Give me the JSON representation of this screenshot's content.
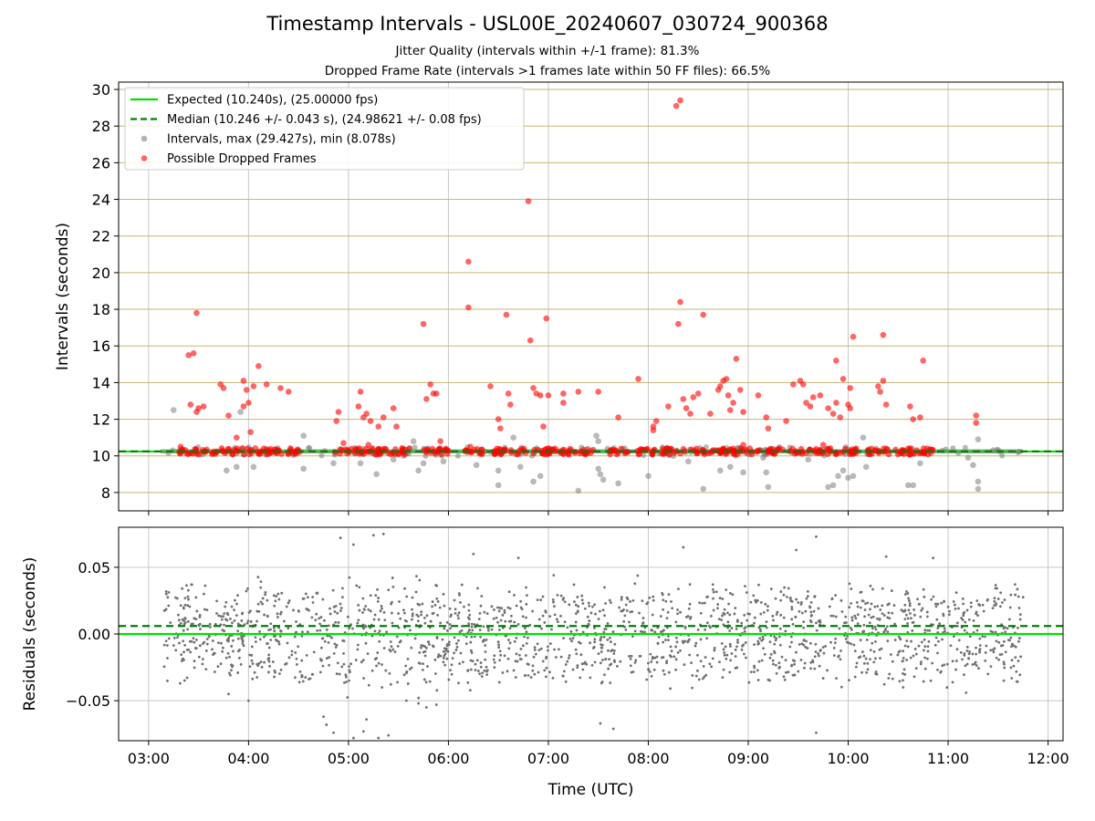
{
  "title": "Timestamp Intervals - USL00E_20240607_030724_900368",
  "subtitle_1": "Jitter Quality (intervals within +/-1 frame): 81.3%",
  "subtitle_2": "Dropped Frame Rate (intervals >1 frames late within 50 FF files): 66.5%",
  "colors": {
    "expected": "#00e000",
    "median": "#008000",
    "intervals": "#808080",
    "dropped": "#ff0000",
    "hgrid": "#c8b670",
    "vgrid": "#c8c8c8"
  },
  "chart_data": [
    {
      "type": "scatter",
      "panel": "top",
      "xlabel": "",
      "ylabel": "Intervals (seconds)",
      "x_unit": "hour (UTC)",
      "xlim": [
        2.7,
        12.15
      ],
      "ylim": [
        7.0,
        30.4
      ],
      "x_ticks": [
        3,
        4,
        5,
        6,
        7,
        8,
        9,
        10,
        11,
        12
      ],
      "y_ticks": [
        8,
        10,
        12,
        14,
        16,
        18,
        20,
        22,
        24,
        26,
        28,
        30
      ],
      "y_tick_labels": [
        "8",
        "10",
        "12",
        "14",
        "16",
        "18",
        "20",
        "22",
        "24",
        "26",
        "28",
        "30"
      ],
      "grid": "y (tan) and x (gray)",
      "legend_placement": "top-left",
      "legend": [
        {
          "label": "Expected (10.240s), (25.00000 fps)",
          "style": "solid-line",
          "color": "#00e000"
        },
        {
          "label": "Median (10.246 +/- 0.043 s), (24.98621 +/- 0.08 fps)",
          "style": "dashed-line",
          "color": "#008000"
        },
        {
          "label": "Intervals, max (29.427s), min (8.078s)",
          "style": "marker",
          "color": "#808080"
        },
        {
          "label": "Possible Dropped Frames",
          "style": "marker",
          "color": "#ff0000"
        }
      ],
      "expected_y": 10.24,
      "median_y": 10.246,
      "baseline_band": {
        "x_start": 3.12,
        "x_end": 11.75,
        "y_low": 10.13,
        "y_high": 10.36
      },
      "series": [
        {
          "name": "Intervals, max (29.427s), min (8.078s)",
          "color": "#808080",
          "points": [
            [
              3.25,
              12.5
            ],
            [
              3.78,
              9.2
            ],
            [
              3.88,
              9.4
            ],
            [
              3.92,
              12.4
            ],
            [
              4.05,
              9.4
            ],
            [
              4.55,
              11.1
            ],
            [
              4.55,
              9.3
            ],
            [
              4.85,
              9.6
            ],
            [
              5.12,
              9.6
            ],
            [
              5.28,
              9.0
            ],
            [
              5.35,
              10.2
            ],
            [
              5.45,
              9.8
            ],
            [
              5.55,
              10.0
            ],
            [
              5.65,
              10.8
            ],
            [
              5.7,
              9.2
            ],
            [
              5.75,
              9.6
            ],
            [
              5.95,
              9.7
            ],
            [
              6.28,
              9.5
            ],
            [
              6.5,
              9.2
            ],
            [
              6.5,
              8.4
            ],
            [
              6.65,
              11.0
            ],
            [
              6.72,
              9.4
            ],
            [
              6.85,
              8.6
            ],
            [
              6.92,
              8.9
            ],
            [
              7.3,
              8.1
            ],
            [
              7.48,
              11.1
            ],
            [
              7.5,
              10.8
            ],
            [
              7.5,
              9.3
            ],
            [
              7.52,
              9.0
            ],
            [
              7.55,
              8.7
            ],
            [
              7.7,
              8.5
            ],
            [
              8.0,
              8.9
            ],
            [
              8.25,
              10.0
            ],
            [
              8.4,
              9.7
            ],
            [
              8.55,
              8.2
            ],
            [
              8.72,
              9.2
            ],
            [
              8.82,
              9.4
            ],
            [
              8.95,
              9.1
            ],
            [
              9.15,
              9.9
            ],
            [
              9.18,
              9.1
            ],
            [
              9.2,
              8.3
            ],
            [
              9.6,
              9.8
            ],
            [
              9.8,
              8.3
            ],
            [
              9.85,
              8.4
            ],
            [
              9.9,
              8.9
            ],
            [
              9.95,
              9.2
            ],
            [
              10.0,
              8.8
            ],
            [
              10.05,
              8.9
            ],
            [
              10.15,
              11.0
            ],
            [
              10.18,
              9.4
            ],
            [
              10.6,
              8.4
            ],
            [
              10.65,
              8.4
            ],
            [
              10.72,
              9.6
            ],
            [
              11.2,
              9.9
            ],
            [
              11.25,
              9.5
            ],
            [
              11.3,
              8.2
            ],
            [
              11.3,
              8.6
            ],
            [
              11.3,
              10.9
            ],
            [
              11.45,
              10.3
            ],
            [
              11.7,
              10.2
            ]
          ]
        },
        {
          "name": "Possible Dropped Frames",
          "color": "#ff0000",
          "points": [
            [
              3.4,
              15.5
            ],
            [
              3.45,
              15.6
            ],
            [
              3.48,
              17.8
            ],
            [
              3.42,
              12.8
            ],
            [
              3.5,
              12.6
            ],
            [
              3.48,
              12.4
            ],
            [
              3.55,
              12.7
            ],
            [
              3.72,
              13.9
            ],
            [
              3.75,
              13.7
            ],
            [
              3.8,
              12.2
            ],
            [
              3.88,
              11.0
            ],
            [
              3.95,
              14.1
            ],
            [
              3.98,
              13.6
            ],
            [
              3.95,
              12.7
            ],
            [
              4.0,
              12.9
            ],
            [
              4.05,
              13.8
            ],
            [
              4.1,
              14.9
            ],
            [
              4.18,
              13.9
            ],
            [
              4.32,
              13.7
            ],
            [
              4.4,
              13.5
            ],
            [
              4.02,
              11.3
            ],
            [
              3.32,
              10.5
            ],
            [
              4.88,
              11.9
            ],
            [
              4.9,
              12.4
            ],
            [
              4.95,
              10.7
            ],
            [
              5.1,
              12.7
            ],
            [
              5.12,
              13.5
            ],
            [
              5.15,
              12.1
            ],
            [
              5.18,
              12.3
            ],
            [
              5.22,
              11.9
            ],
            [
              5.3,
              11.6
            ],
            [
              5.35,
              12.1
            ],
            [
              5.45,
              12.6
            ],
            [
              5.48,
              11.6
            ],
            [
              5.2,
              10.6
            ],
            [
              5.75,
              17.2
            ],
            [
              5.78,
              13.1
            ],
            [
              5.82,
              13.9
            ],
            [
              5.85,
              13.4
            ],
            [
              5.88,
              13.4
            ],
            [
              5.92,
              10.8
            ],
            [
              6.2,
              20.6
            ],
            [
              6.2,
              18.1
            ],
            [
              6.22,
              10.5
            ],
            [
              6.42,
              13.8
            ],
            [
              6.5,
              12.0
            ],
            [
              6.52,
              11.5
            ],
            [
              6.58,
              17.7
            ],
            [
              6.6,
              13.4
            ],
            [
              6.62,
              12.8
            ],
            [
              6.8,
              23.9
            ],
            [
              6.82,
              16.3
            ],
            [
              6.85,
              13.7
            ],
            [
              6.88,
              13.4
            ],
            [
              6.92,
              13.3
            ],
            [
              6.95,
              11.6
            ],
            [
              6.98,
              17.5
            ],
            [
              7.0,
              13.3
            ],
            [
              7.15,
              13.4
            ],
            [
              7.15,
              12.9
            ],
            [
              7.3,
              13.5
            ],
            [
              7.5,
              13.5
            ],
            [
              7.7,
              12.1
            ],
            [
              7.9,
              14.2
            ],
            [
              8.05,
              11.6
            ],
            [
              8.08,
              11.9
            ],
            [
              8.05,
              11.4
            ],
            [
              8.2,
              12.7
            ],
            [
              8.28,
              29.1
            ],
            [
              8.32,
              29.4
            ],
            [
              8.32,
              18.4
            ],
            [
              8.3,
              17.2
            ],
            [
              8.35,
              13.1
            ],
            [
              8.38,
              12.6
            ],
            [
              8.42,
              12.3
            ],
            [
              8.45,
              13.2
            ],
            [
              8.5,
              13.4
            ],
            [
              8.55,
              17.7
            ],
            [
              8.62,
              12.3
            ],
            [
              8.7,
              13.6
            ],
            [
              8.72,
              13.8
            ],
            [
              8.75,
              14.1
            ],
            [
              8.78,
              14.2
            ],
            [
              8.8,
              13.3
            ],
            [
              8.82,
              12.5
            ],
            [
              8.85,
              12.9
            ],
            [
              8.88,
              15.3
            ],
            [
              8.92,
              13.6
            ],
            [
              8.95,
              12.4
            ],
            [
              9.1,
              13.3
            ],
            [
              9.18,
              12.1
            ],
            [
              9.2,
              11.5
            ],
            [
              9.38,
              11.9
            ],
            [
              9.45,
              13.9
            ],
            [
              9.52,
              14.1
            ],
            [
              9.55,
              13.9
            ],
            [
              9.58,
              12.9
            ],
            [
              9.62,
              12.7
            ],
            [
              9.65,
              13.2
            ],
            [
              9.72,
              13.3
            ],
            [
              9.75,
              10.6
            ],
            [
              9.8,
              12.6
            ],
            [
              9.85,
              12.3
            ],
            [
              9.88,
              12.9
            ],
            [
              9.88,
              15.2
            ],
            [
              9.92,
              12.1
            ],
            [
              9.95,
              14.2
            ],
            [
              10.0,
              12.8
            ],
            [
              10.02,
              12.6
            ],
            [
              10.02,
              13.7
            ],
            [
              10.05,
              16.5
            ],
            [
              10.3,
              13.8
            ],
            [
              10.32,
              13.5
            ],
            [
              10.35,
              14.1
            ],
            [
              10.35,
              16.6
            ],
            [
              10.38,
              12.8
            ],
            [
              10.62,
              12.7
            ],
            [
              10.65,
              12.0
            ],
            [
              10.72,
              12.1
            ],
            [
              10.75,
              15.2
            ],
            [
              11.28,
              12.2
            ],
            [
              11.28,
              11.8
            ],
            [
              10.6,
              10.4
            ],
            [
              8.95,
              10.6
            ],
            [
              6.18,
              10.3
            ]
          ]
        }
      ]
    },
    {
      "type": "scatter",
      "panel": "bottom",
      "xlabel": "Time (UTC)",
      "ylabel": "Residuals (seconds)",
      "x_unit": "hour (UTC)",
      "xlim": [
        2.7,
        12.15
      ],
      "ylim": [
        -0.08,
        0.08
      ],
      "x_ticks": [
        3,
        4,
        5,
        6,
        7,
        8,
        9,
        10,
        11,
        12
      ],
      "x_tick_labels": [
        "03:00",
        "04:00",
        "05:00",
        "06:00",
        "07:00",
        "08:00",
        "09:00",
        "10:00",
        "11:00",
        "12:00"
      ],
      "y_ticks": [
        -0.05,
        0.0,
        0.05
      ],
      "y_tick_labels": [
        "−0.05",
        "0.00",
        "0.05"
      ],
      "grid": "x and y (gray)",
      "expected_y": 0.0,
      "median_y": 0.006,
      "residual_bands": [
        -0.02,
        0.0,
        0.02
      ],
      "residual_spread": 0.043,
      "points_time_range": [
        3.15,
        11.75
      ],
      "residual_point_count": 1800,
      "outliers": [
        [
          4.75,
          -0.062
        ],
        [
          4.78,
          -0.068
        ],
        [
          4.85,
          -0.074
        ],
        [
          4.92,
          0.072
        ],
        [
          5.05,
          -0.078
        ],
        [
          5.15,
          -0.073
        ],
        [
          5.18,
          -0.064
        ],
        [
          5.25,
          0.074
        ],
        [
          5.3,
          -0.078
        ],
        [
          5.35,
          0.075
        ],
        [
          5.4,
          -0.076
        ],
        [
          5.58,
          -0.05
        ],
        [
          5.7,
          -0.052
        ],
        [
          5.78,
          -0.055
        ],
        [
          5.88,
          -0.053
        ],
        [
          7.52,
          -0.067
        ],
        [
          7.65,
          -0.071
        ],
        [
          8.35,
          0.065
        ],
        [
          9.48,
          0.063
        ],
        [
          9.68,
          0.073
        ],
        [
          9.68,
          -0.074
        ],
        [
          10.38,
          0.058
        ],
        [
          10.85,
          0.057
        ],
        [
          11.18,
          -0.044
        ],
        [
          4.0,
          -0.05
        ],
        [
          3.8,
          -0.045
        ],
        [
          5.05,
          0.067
        ],
        [
          10.55,
          -0.04
        ],
        [
          6.7,
          0.057
        ],
        [
          6.25,
          0.06
        ]
      ],
      "legend": []
    }
  ]
}
